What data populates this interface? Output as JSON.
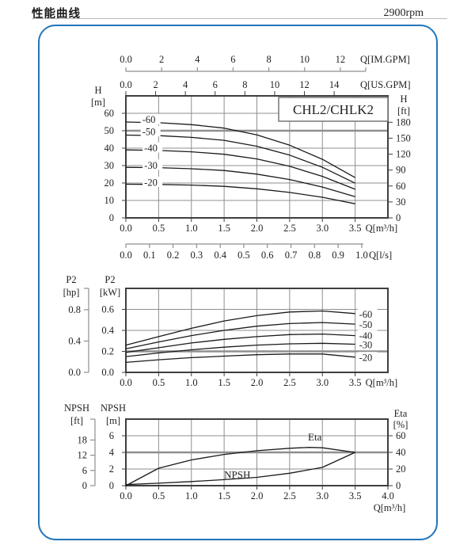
{
  "header": {
    "title": "性能曲线",
    "rpm": "2900rpm"
  },
  "colors": {
    "panel_border": "#2274b9",
    "grid": "#8f8f8f",
    "frame": "#3f3f3f",
    "curve": "#1a1a1a"
  },
  "chart_data": [
    {
      "type": "line",
      "name": "head-flow-chart",
      "title": "CHL2/CHLK2",
      "xlabel": "Q[m³/h]",
      "ylabel": "H [m]",
      "x": {
        "min": 0,
        "max": 4,
        "grid_step": 0.5,
        "tick_step": 0.5,
        "tick_labels": [
          "0.0",
          "0.5",
          "1.0",
          "1.5",
          "2.0",
          "2.5",
          "3.0",
          "3.5"
        ],
        "label": "Q[m³/h]"
      },
      "y": {
        "min": 0,
        "max": 70,
        "grid_step": 10,
        "tick_step": 10,
        "tick_labels": [
          "0",
          "10",
          "20",
          "30",
          "40",
          "50",
          "60"
        ],
        "heading": [
          "H",
          "[m]"
        ],
        "emphasized_gridline": 50
      },
      "y_right": {
        "heading": [
          "H",
          "[ft]"
        ],
        "tick_step": 30,
        "m_per_unit": 0.3048,
        "tick_labels": [
          "0",
          "30",
          "60",
          "90",
          "120",
          "150",
          "180"
        ]
      },
      "top_scales": [
        {
          "label": "Q[IM.GPM]",
          "tick_step": 2,
          "m3h_per_unit": 0.27276,
          "tick_labels": [
            "0.0",
            "2",
            "4",
            "6",
            "8",
            "10",
            "12"
          ]
        },
        {
          "label": "Q[US.GPM]",
          "tick_step": 2,
          "m3h_per_unit": 0.22712,
          "tick_labels": [
            "0.0",
            "2",
            "4",
            "6",
            "8",
            "10",
            "12",
            "14"
          ]
        }
      ],
      "bottom_scale": {
        "label": "Q[l/s]",
        "tick_step": 0.1,
        "m3h_per_unit": 3.6,
        "tick_labels": [
          "0.0",
          "0.1",
          "0.2",
          "0.3",
          "0.4",
          "0.5",
          "0.6",
          "0.7",
          "0.8",
          "0.9",
          "1.0"
        ]
      },
      "series": [
        {
          "name": "-60",
          "label_q": 0.25,
          "label_v": 56.5,
          "points": [
            [
              0,
              55
            ],
            [
              0.5,
              54.6
            ],
            [
              1,
              53.5
            ],
            [
              1.5,
              51.5
            ],
            [
              2,
              47.6
            ],
            [
              2.5,
              41.7
            ],
            [
              3,
              33.6
            ],
            [
              3.5,
              23.1
            ]
          ]
        },
        {
          "name": "-50",
          "label_q": 0.25,
          "label_v": 49.5,
          "points": [
            [
              0,
              47.5
            ],
            [
              0.5,
              47.2
            ],
            [
              1,
              46.2
            ],
            [
              1.5,
              44.5
            ],
            [
              2,
              41.1
            ],
            [
              2.5,
              36.0
            ],
            [
              3,
              29.0
            ],
            [
              3.5,
              19.9
            ]
          ]
        },
        {
          "name": "-40",
          "label_q": 0.28,
          "label_v": 40.2,
          "points": [
            [
              0,
              39
            ],
            [
              0.5,
              38.7
            ],
            [
              1,
              37.9
            ],
            [
              1.5,
              36.5
            ],
            [
              2,
              33.8
            ],
            [
              2.5,
              29.6
            ],
            [
              3,
              23.8
            ],
            [
              3.5,
              16.4
            ]
          ]
        },
        {
          "name": "-30",
          "label_q": 0.28,
          "label_v": 30.3,
          "points": [
            [
              0,
              29
            ],
            [
              0.5,
              28.8
            ],
            [
              1,
              28.2
            ],
            [
              1.5,
              27.2
            ],
            [
              2,
              25.1
            ],
            [
              2.5,
              22.0
            ],
            [
              3,
              17.7
            ],
            [
              3.5,
              12.2
            ]
          ]
        },
        {
          "name": "-20",
          "label_q": 0.28,
          "label_v": 20.5,
          "points": [
            [
              0,
              19.3
            ],
            [
              0.5,
              19.2
            ],
            [
              1,
              18.8
            ],
            [
              1.5,
              18.1
            ],
            [
              2,
              16.7
            ],
            [
              2.5,
              14.6
            ],
            [
              3,
              11.8
            ],
            [
              3.5,
              8.1
            ]
          ]
        }
      ]
    },
    {
      "type": "line",
      "name": "power-flow-chart",
      "xlabel": "Q[m³/h]",
      "ylabel": "P2 [kW]",
      "x": {
        "min": 0,
        "max": 4,
        "grid_step": 0.5,
        "tick_step": 0.5,
        "tick_labels": [
          "0.0",
          "0.5",
          "1.0",
          "1.5",
          "2.0",
          "2.5",
          "3.0",
          "3.5"
        ],
        "label": "Q[m³/h]"
      },
      "y": {
        "min": 0,
        "max": 0.8,
        "grid_step": 0.2,
        "tick_step": 0.2,
        "tick_labels": [
          "0.0",
          "0.2",
          "0.4",
          "0.6"
        ],
        "heading": [
          "P2",
          "[kW]"
        ],
        "emphasized_gridline": 0.2
      },
      "ruler": {
        "heading": [
          "P2",
          "[hp]"
        ],
        "tick_step": 0.4,
        "m_per_unit": 0.7457,
        "tick_labels": [
          "0.0",
          "0.4",
          "0.8"
        ]
      },
      "series": [
        {
          "name": "-60",
          "label_q": 3.56,
          "label_v": 0.555,
          "points": [
            [
              0,
              0.26
            ],
            [
              0.5,
              0.34
            ],
            [
              1,
              0.42
            ],
            [
              1.5,
              0.49
            ],
            [
              2,
              0.54
            ],
            [
              2.5,
              0.575
            ],
            [
              3,
              0.585
            ],
            [
              3.5,
              0.56
            ]
          ]
        },
        {
          "name": "-50",
          "label_q": 3.56,
          "label_v": 0.455,
          "points": [
            [
              0,
              0.225
            ],
            [
              0.5,
              0.29
            ],
            [
              1,
              0.35
            ],
            [
              1.5,
              0.4
            ],
            [
              2,
              0.44
            ],
            [
              2.5,
              0.465
            ],
            [
              3,
              0.475
            ],
            [
              3.5,
              0.46
            ]
          ]
        },
        {
          "name": "-40",
          "label_q": 3.56,
          "label_v": 0.35,
          "points": [
            [
              0,
              0.19
            ],
            [
              0.5,
              0.235
            ],
            [
              1,
              0.28
            ],
            [
              1.5,
              0.315
            ],
            [
              2,
              0.34
            ],
            [
              2.5,
              0.36
            ],
            [
              3,
              0.365
            ],
            [
              3.5,
              0.35
            ]
          ]
        },
        {
          "name": "-30",
          "label_q": 3.56,
          "label_v": 0.266,
          "points": [
            [
              0,
              0.15
            ],
            [
              0.5,
              0.185
            ],
            [
              1,
              0.215
            ],
            [
              1.5,
              0.24
            ],
            [
              2,
              0.26
            ],
            [
              2.5,
              0.272
            ],
            [
              3,
              0.277
            ],
            [
              3.5,
              0.268
            ]
          ]
        },
        {
          "name": "-20",
          "label_q": 3.56,
          "label_v": 0.142,
          "points": [
            [
              0,
              0.095
            ],
            [
              0.5,
              0.12
            ],
            [
              1,
              0.14
            ],
            [
              1.5,
              0.155
            ],
            [
              2,
              0.168
            ],
            [
              2.5,
              0.175
            ],
            [
              3,
              0.175
            ],
            [
              3.5,
              0.145
            ]
          ]
        }
      ]
    },
    {
      "type": "line",
      "name": "npsh-eta-flow-chart",
      "xlabel": "Q[m³/h]",
      "ylabel": "NPSH [m]",
      "xlabel_below": true,
      "x": {
        "min": 0,
        "max": 4,
        "grid_step": 0.5,
        "tick_step": 0.5,
        "tick_labels": [
          "0.0",
          "0.5",
          "1.0",
          "1.5",
          "2.0",
          "2.5",
          "3.0",
          "3.5",
          "4.0"
        ],
        "label": "Q[m³/h]"
      },
      "y": {
        "min": 0,
        "max": 8,
        "grid_step": 2,
        "tick_step": 2,
        "tick_labels": [
          "0",
          "2",
          "4",
          "6"
        ],
        "heading": [
          "NPSH",
          "[m]"
        ],
        "emphasized_gridline": 4
      },
      "y_right": {
        "heading": [
          "Eta",
          "[%]"
        ],
        "tick_step": 20,
        "m_per_unit": 0.1,
        "tick_labels": [
          "0",
          "20",
          "40",
          "60"
        ]
      },
      "ruler": {
        "heading": [
          "NPSH",
          "[ft]"
        ],
        "tick_step": 6,
        "m_per_unit": 0.3048,
        "tick_labels": [
          "0",
          "6",
          "12",
          "18"
        ]
      },
      "series": [
        {
          "name": "Eta",
          "m_per_unit": 0.1,
          "points": [
            [
              0,
              0
            ],
            [
              0.5,
              21
            ],
            [
              1,
              31
            ],
            [
              1.5,
              37.5
            ],
            [
              2,
              42
            ],
            [
              2.5,
              45
            ],
            [
              2.8,
              46
            ],
            [
              3,
              45.5
            ],
            [
              3.5,
              40
            ]
          ]
        },
        {
          "name": "NPSH",
          "points": [
            [
              0,
              0.12
            ],
            [
              0.5,
              0.3
            ],
            [
              1,
              0.5
            ],
            [
              1.5,
              0.72
            ],
            [
              2,
              1.0
            ],
            [
              2.5,
              1.5
            ],
            [
              3,
              2.2
            ],
            [
              3.5,
              4.0
            ]
          ]
        }
      ],
      "annotations": [
        {
          "text": "Eta",
          "q": 2.78,
          "v": 5.8
        },
        {
          "text": "NPSH",
          "q": 1.5,
          "v": 1.3
        }
      ]
    }
  ]
}
